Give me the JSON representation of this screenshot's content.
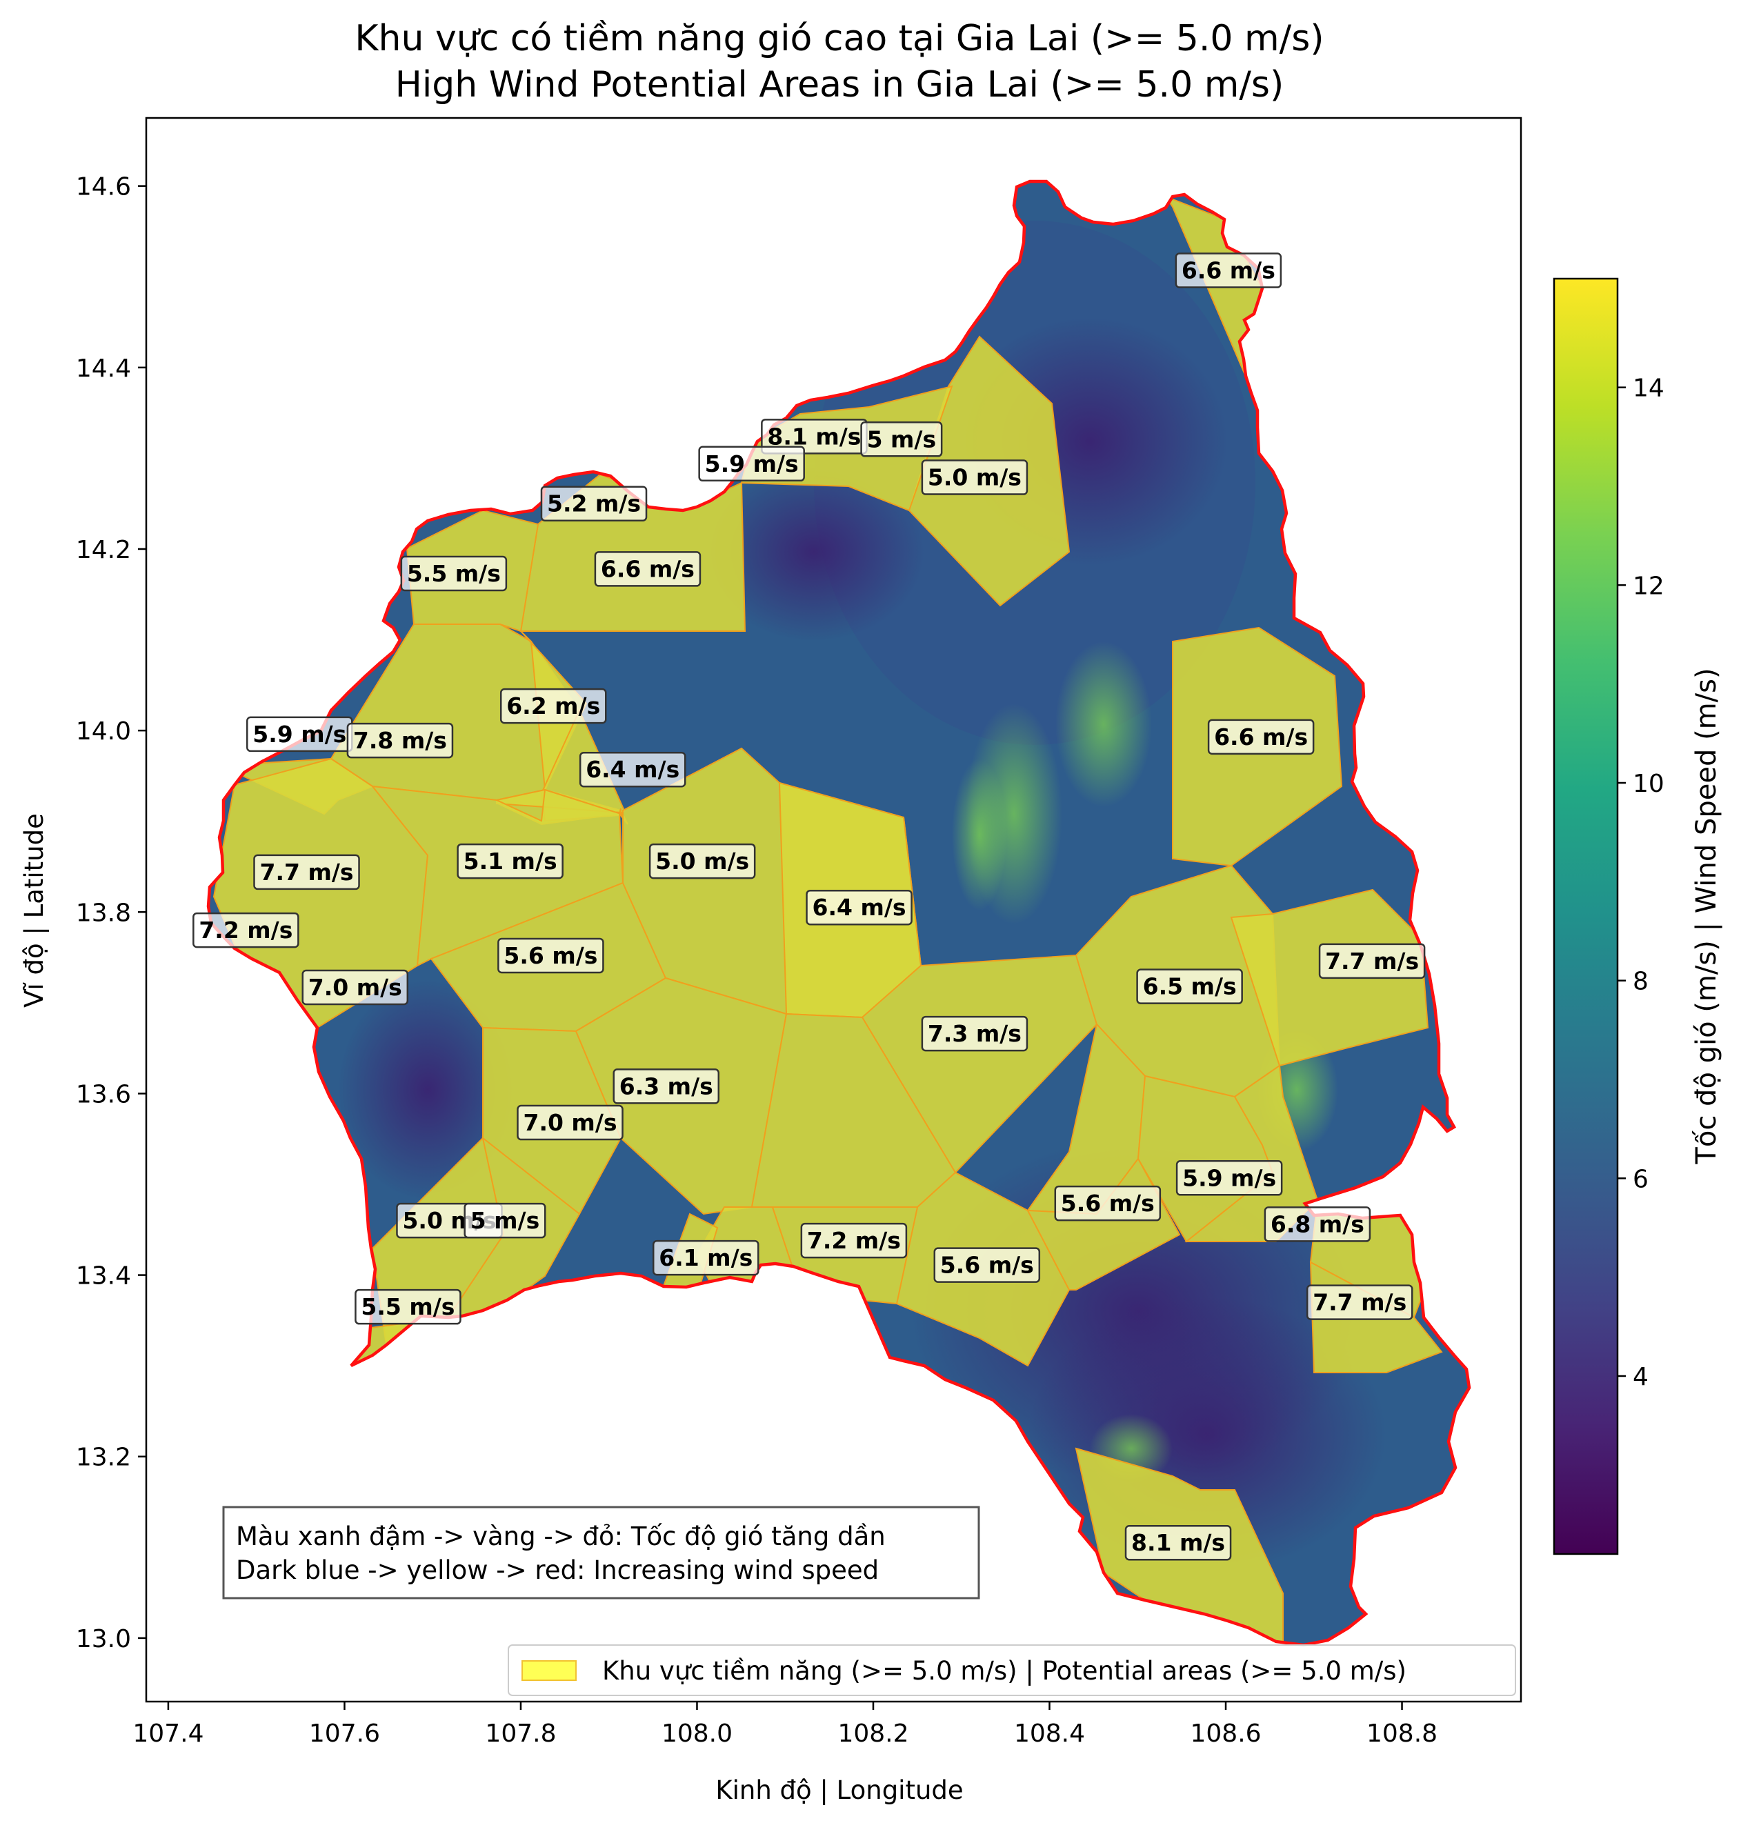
{
  "title": {
    "line1": "Khu vực có tiềm năng gió cao tại Gia Lai (>= 5.0 m/s)",
    "line2": "High Wind Potential Areas in Gia Lai (>= 5.0 m/s)"
  },
  "axes": {
    "xlabel": "Kinh độ | Longitude",
    "ylabel": "Vĩ độ | Latitude",
    "xlim": [
      107.375,
      108.935
    ],
    "ylim": [
      12.93,
      14.675
    ],
    "xticks": [
      "107.4",
      "107.6",
      "107.8",
      "108.0",
      "108.2",
      "108.4",
      "108.6",
      "108.8"
    ],
    "yticks": [
      "13.0",
      "13.2",
      "13.4",
      "13.6",
      "13.8",
      "14.0",
      "14.2",
      "14.4",
      "14.6"
    ]
  },
  "colorbar": {
    "label": "Tốc độ gió (m/s) | Wind Speed (m/s)",
    "colormap": "viridis",
    "range": [
      2.2,
      15.1
    ],
    "ticks": [
      "4",
      "6",
      "8",
      "10",
      "12",
      "14"
    ]
  },
  "note": {
    "line1": "Màu xanh đậm -> vàng -> đỏ: Tốc độ gió tăng dần",
    "line2": "Dark blue -> yellow -> red: Increasing wind speed"
  },
  "legend": {
    "label": "Khu vực tiềm năng (>= 5.0 m/s) | Potential areas (>= 5.0 m/s)",
    "color": "#ffff55"
  },
  "colors": {
    "boundary": "#ff0000",
    "highlight": "#d9d93a",
    "highlight_edge": "#ffa500",
    "background_low": "#2d4a8a",
    "background_mid": "#2f6b8c"
  },
  "chart_data": {
    "type": "map",
    "threshold_ms": 5.0,
    "area_labels": [
      {
        "text": "6.6 m/s",
        "lon": 108.603,
        "lat": 14.507
      },
      {
        "text": "8.1 m/s",
        "lon": 108.133,
        "lat": 14.324
      },
      {
        "text": "5 m/s",
        "lon": 108.232,
        "lat": 14.321
      },
      {
        "text": "5.9 m/s",
        "lon": 108.062,
        "lat": 14.294
      },
      {
        "text": "5.0 m/s",
        "lon": 108.315,
        "lat": 14.279
      },
      {
        "text": "5.2 m/s",
        "lon": 107.883,
        "lat": 14.25
      },
      {
        "text": "6.6 m/s",
        "lon": 107.944,
        "lat": 14.178
      },
      {
        "text": "5.5 m/s",
        "lon": 107.724,
        "lat": 14.173
      },
      {
        "text": "6.6 m/s",
        "lon": 108.64,
        "lat": 13.993
      },
      {
        "text": "6.2 m/s",
        "lon": 107.837,
        "lat": 14.027
      },
      {
        "text": "5.9 m/s",
        "lon": 107.549,
        "lat": 13.996
      },
      {
        "text": "7.8 m/s",
        "lon": 107.663,
        "lat": 13.989
      },
      {
        "text": "6.4 m/s",
        "lon": 107.927,
        "lat": 13.957
      },
      {
        "text": "7.7 m/s",
        "lon": 107.557,
        "lat": 13.844
      },
      {
        "text": "5.1 m/s",
        "lon": 107.788,
        "lat": 13.856
      },
      {
        "text": "5.0 m/s",
        "lon": 108.006,
        "lat": 13.856
      },
      {
        "text": "6.4 m/s",
        "lon": 108.184,
        "lat": 13.805
      },
      {
        "text": "7.2 m/s",
        "lon": 107.488,
        "lat": 13.78
      },
      {
        "text": "7.7 m/s",
        "lon": 108.766,
        "lat": 13.746
      },
      {
        "text": "5.6 m/s",
        "lon": 107.834,
        "lat": 13.752
      },
      {
        "text": "6.5 m/s",
        "lon": 108.559,
        "lat": 13.718
      },
      {
        "text": "7.0 m/s",
        "lon": 107.612,
        "lat": 13.717
      },
      {
        "text": "7.3 m/s",
        "lon": 108.315,
        "lat": 13.666
      },
      {
        "text": "6.3 m/s",
        "lon": 107.965,
        "lat": 13.608
      },
      {
        "text": "7.0 m/s",
        "lon": 107.856,
        "lat": 13.568
      },
      {
        "text": "5.9 m/s",
        "lon": 108.604,
        "lat": 13.507
      },
      {
        "text": "5.6 m/s",
        "lon": 108.466,
        "lat": 13.479
      },
      {
        "text": "5.0 m/s",
        "lon": 107.719,
        "lat": 13.46
      },
      {
        "text": "5 m/s",
        "lon": 107.782,
        "lat": 13.46
      },
      {
        "text": "6.8 m/s",
        "lon": 108.704,
        "lat": 13.456
      },
      {
        "text": "7.2 m/s",
        "lon": 108.178,
        "lat": 13.438
      },
      {
        "text": "6.1 m/s",
        "lon": 108.01,
        "lat": 13.419
      },
      {
        "text": "5.6 m/s",
        "lon": 108.329,
        "lat": 13.411
      },
      {
        "text": "7.7 m/s",
        "lon": 108.752,
        "lat": 13.37
      },
      {
        "text": "5.5 m/s",
        "lon": 107.672,
        "lat": 13.365
      },
      {
        "text": "8.1 m/s",
        "lon": 108.546,
        "lat": 13.105
      }
    ]
  }
}
